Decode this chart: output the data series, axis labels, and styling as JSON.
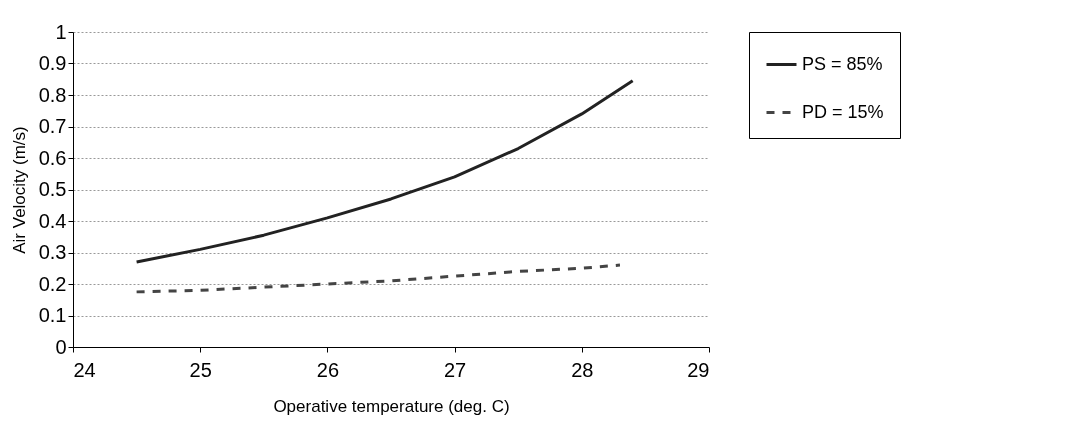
{
  "chart_data": {
    "type": "line",
    "xlabel": "Operative temperature (deg. C)",
    "ylabel": "Air Velocity (m/s)",
    "xlim": [
      24,
      29
    ],
    "xticks": [
      24,
      25,
      26,
      27,
      28,
      29
    ],
    "ylim": [
      0,
      1
    ],
    "yticks": [
      0,
      0.1,
      0.2,
      0.3,
      0.4,
      0.5,
      0.6,
      0.7,
      0.8,
      0.9,
      1
    ],
    "grid": "y",
    "legend": "right",
    "marker": "none",
    "series": [
      {
        "name": "PS = 85%",
        "color": "#222222",
        "line_style": "solid",
        "x": [
          24.5,
          25,
          25.5,
          26,
          26.5,
          27,
          27.5,
          28,
          28.4
        ],
        "values": [
          0.27,
          0.31,
          0.355,
          0.41,
          0.47,
          0.54,
          0.63,
          0.74,
          0.845
        ]
      },
      {
        "name": "PD = 15%",
        "color": "#444444",
        "line_style": "dashed",
        "x": [
          24.5,
          25,
          25.5,
          26,
          26.5,
          27,
          27.5,
          28,
          28.3
        ],
        "values": [
          0.175,
          0.18,
          0.19,
          0.2,
          0.21,
          0.225,
          0.24,
          0.25,
          0.26
        ]
      }
    ]
  }
}
